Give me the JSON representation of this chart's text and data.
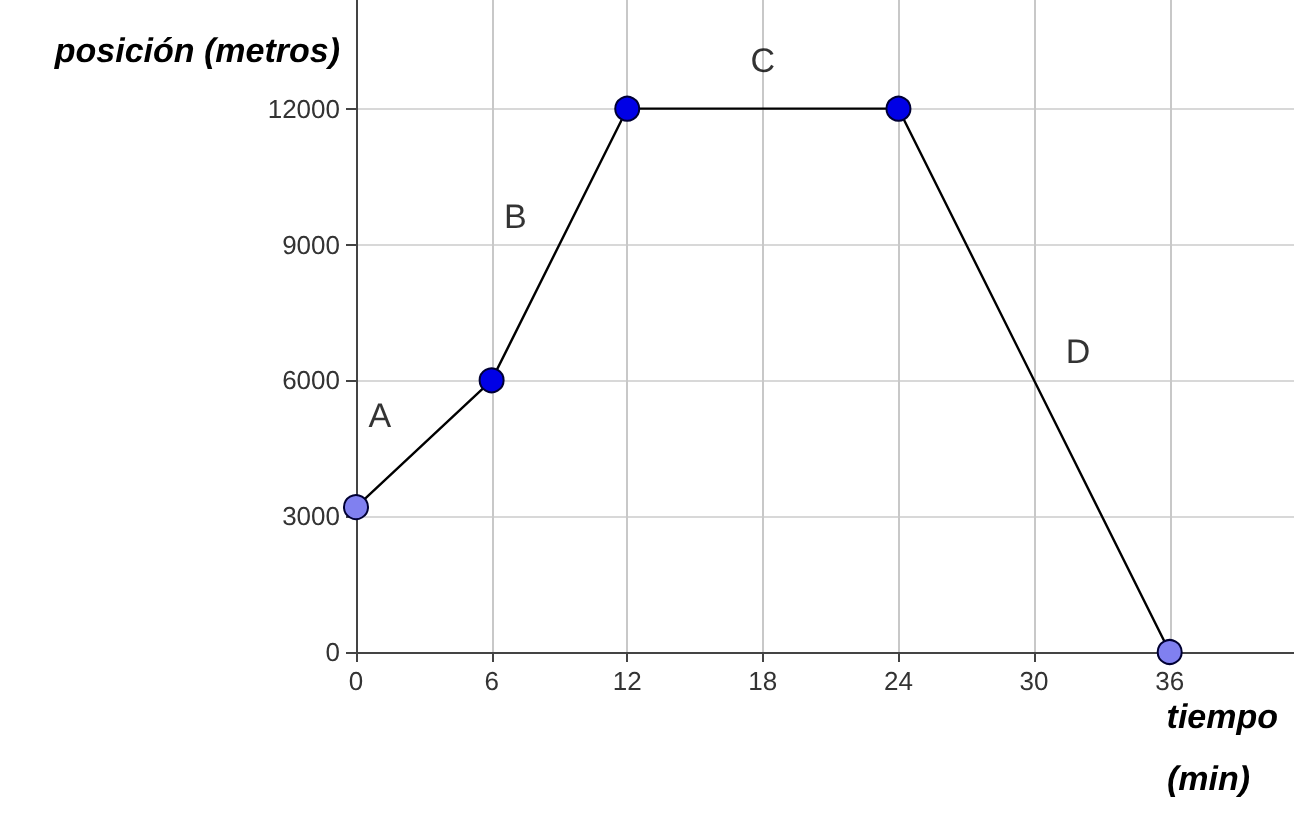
{
  "chart_data": {
    "type": "line",
    "xlabel": "tiempo\n(min)",
    "ylabel": "posición (metros)",
    "x": [
      0,
      6,
      12,
      24,
      36
    ],
    "series": [
      {
        "color": "#000000",
        "values": [
          3200,
          6000,
          12000,
          12000,
          0
        ],
        "colors": [
          "#8080f0",
          "#0000e6",
          "#0000e6",
          "#0000e6",
          "#8080f0"
        ]
      }
    ],
    "xlim": [
      0,
      41.5
    ],
    "xticks": [
      0,
      6,
      12,
      18,
      24,
      30,
      36
    ],
    "ylim": [
      0,
      14400
    ],
    "yticks": [
      0,
      3000,
      6000,
      9000,
      12000
    ],
    "grid": true,
    "marker": "circle",
    "line_style": "solid",
    "annotations": [
      "A",
      "B",
      "C",
      "D"
    ]
  }
}
